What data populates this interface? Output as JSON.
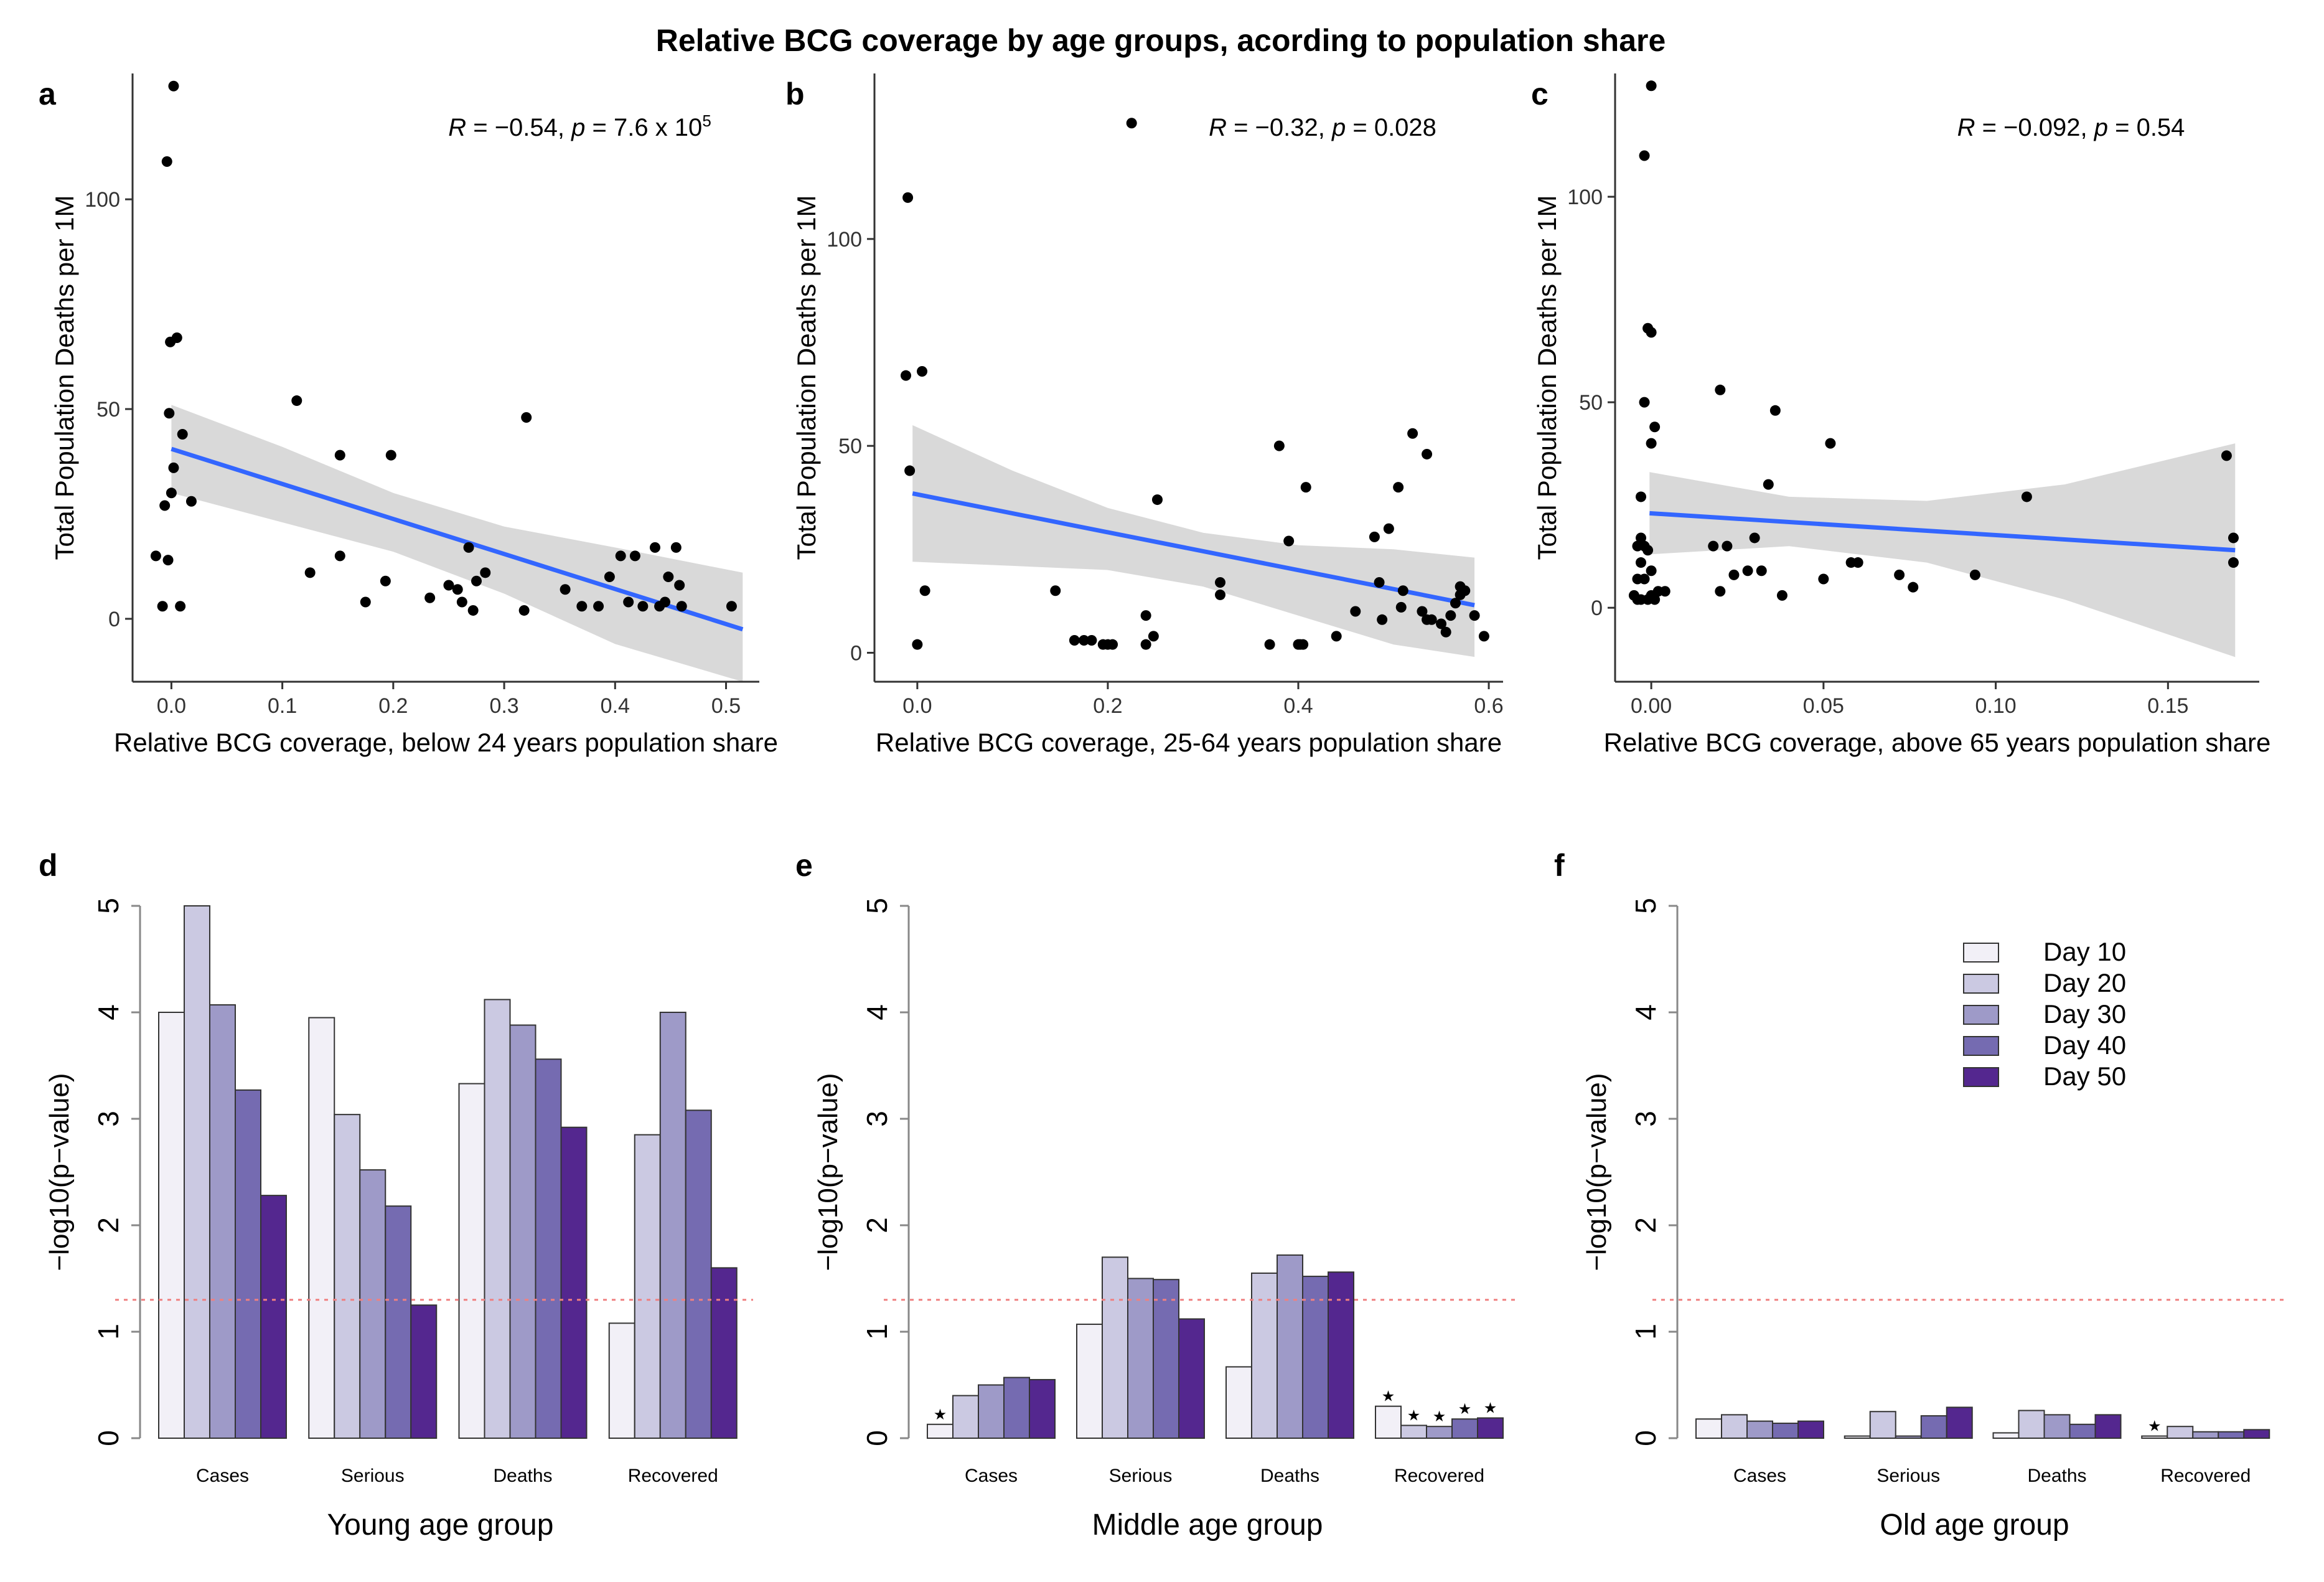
{
  "title": "Relative BCG coverage by age groups, acording to population share",
  "colors": {
    "point": "#000000",
    "fit_line": "#3366FF",
    "ribbon": "#D9D9D9",
    "threshold": "#F08080",
    "axis": "#333333",
    "days": [
      "#F2F0F7",
      "#CBC9E2",
      "#9E9AC8",
      "#756BB1",
      "#54278F"
    ]
  },
  "chart_data": [
    {
      "panel": "a",
      "type": "scatter",
      "xlabel": "Relative BCG coverage, below 24 years population share",
      "ylabel": "Total Population Deaths per 1M",
      "xlim": [
        -0.035,
        0.53
      ],
      "ylim": [
        -15,
        130
      ],
      "xticks": [
        0,
        0.1,
        0.2,
        0.3,
        0.4,
        0.5
      ],
      "xtick_labels": [
        "0.0",
        "0.1",
        "0.2",
        "0.3",
        "0.4",
        "0.5"
      ],
      "yticks": [
        0,
        50,
        100
      ],
      "ytick_labels": [
        "0",
        "50",
        "100"
      ],
      "annotation": {
        "r_lbl": "R",
        "r_val": " = −0.54, ",
        "p_lbl": "p",
        "p_val": " = 7.6 x 10",
        "p_sup": "5"
      },
      "fit": {
        "x0": 0.0,
        "y0": 40.5,
        "x1": 0.515,
        "y1": -2.5
      },
      "ribbon": {
        "x": [
          0.0,
          0.1,
          0.2,
          0.3,
          0.4,
          0.515
        ],
        "upper": [
          51,
          41,
          30,
          22,
          17,
          11
        ],
        "lower": [
          30,
          23,
          16,
          6,
          -6,
          -15
        ]
      },
      "points": [
        [
          0.002,
          127
        ],
        [
          -0.004,
          109
        ],
        [
          -0.001,
          66
        ],
        [
          0.005,
          67
        ],
        [
          -0.002,
          49
        ],
        [
          0.01,
          44
        ],
        [
          0.002,
          36
        ],
        [
          0.0,
          30
        ],
        [
          -0.006,
          27
        ],
        [
          0.018,
          28
        ],
        [
          -0.014,
          15
        ],
        [
          -0.003,
          14
        ],
        [
          -0.008,
          3
        ],
        [
          0.008,
          3
        ],
        [
          0.113,
          52
        ],
        [
          0.152,
          39
        ],
        [
          0.198,
          39
        ],
        [
          0.125,
          11
        ],
        [
          0.152,
          15
        ],
        [
          0.175,
          4
        ],
        [
          0.193,
          9
        ],
        [
          0.233,
          5
        ],
        [
          0.25,
          8
        ],
        [
          0.258,
          7
        ],
        [
          0.268,
          17
        ],
        [
          0.275,
          9
        ],
        [
          0.283,
          11
        ],
        [
          0.262,
          4
        ],
        [
          0.272,
          2
        ],
        [
          0.32,
          48
        ],
        [
          0.318,
          2
        ],
        [
          0.355,
          7
        ],
        [
          0.37,
          3
        ],
        [
          0.385,
          3
        ],
        [
          0.395,
          10
        ],
        [
          0.405,
          15
        ],
        [
          0.418,
          15
        ],
        [
          0.412,
          4
        ],
        [
          0.425,
          3
        ],
        [
          0.436,
          17
        ],
        [
          0.455,
          17
        ],
        [
          0.448,
          10
        ],
        [
          0.458,
          8
        ],
        [
          0.445,
          4
        ],
        [
          0.44,
          3
        ],
        [
          0.46,
          3
        ],
        [
          0.505,
          3
        ]
      ]
    },
    {
      "panel": "b",
      "type": "scatter",
      "xlabel": "Relative BCG coverage, 25-64 years population share",
      "ylabel": "Total Population Deaths per 1M",
      "xlim": [
        -0.045,
        0.615
      ],
      "ylim": [
        -7,
        140
      ],
      "xticks": [
        0,
        0.2,
        0.4,
        0.6
      ],
      "xtick_labels": [
        "0.0",
        "0.2",
        "0.4",
        "0.6"
      ],
      "yticks": [
        0,
        50,
        100
      ],
      "ytick_labels": [
        "0",
        "50",
        "100"
      ],
      "annotation": {
        "r_lbl": "R",
        "r_val": " = −0.32, ",
        "p_lbl": "p",
        "p_val": " = 0.028",
        "p_sup": ""
      },
      "fit": {
        "x0": -0.005,
        "y0": 38.5,
        "x1": 0.585,
        "y1": 11.5
      },
      "ribbon": {
        "x": [
          -0.005,
          0.1,
          0.2,
          0.3,
          0.4,
          0.5,
          0.585
        ],
        "upper": [
          55,
          44,
          35,
          29,
          26,
          25,
          23
        ],
        "lower": [
          22,
          21,
          20,
          16,
          9,
          2,
          -1
        ]
      },
      "points": [
        [
          -0.01,
          110
        ],
        [
          -0.012,
          67
        ],
        [
          -0.008,
          44
        ],
        [
          0.005,
          68
        ],
        [
          0.0,
          2
        ],
        [
          0.008,
          15
        ],
        [
          0.225,
          128
        ],
        [
          0.145,
          15
        ],
        [
          0.165,
          3
        ],
        [
          0.175,
          3
        ],
        [
          0.183,
          3
        ],
        [
          0.195,
          2
        ],
        [
          0.2,
          2
        ],
        [
          0.205,
          2
        ],
        [
          0.24,
          9
        ],
        [
          0.24,
          2
        ],
        [
          0.248,
          4
        ],
        [
          0.252,
          37
        ],
        [
          0.318,
          17
        ],
        [
          0.318,
          14
        ],
        [
          0.37,
          2
        ],
        [
          0.38,
          50
        ],
        [
          0.39,
          27
        ],
        [
          0.4,
          2
        ],
        [
          0.402,
          2
        ],
        [
          0.408,
          40
        ],
        [
          0.405,
          2
        ],
        [
          0.44,
          4
        ],
        [
          0.46,
          10
        ],
        [
          0.48,
          28
        ],
        [
          0.485,
          17
        ],
        [
          0.488,
          8
        ],
        [
          0.495,
          30
        ],
        [
          0.505,
          40
        ],
        [
          0.508,
          11
        ],
        [
          0.51,
          15
        ],
        [
          0.52,
          53
        ],
        [
          0.53,
          10
        ],
        [
          0.535,
          8
        ],
        [
          0.535,
          48
        ],
        [
          0.54,
          8
        ],
        [
          0.55,
          7
        ],
        [
          0.555,
          5
        ],
        [
          0.56,
          9
        ],
        [
          0.565,
          12
        ],
        [
          0.57,
          14
        ],
        [
          0.575,
          15
        ],
        [
          0.57,
          16
        ],
        [
          0.585,
          9
        ],
        [
          0.595,
          4
        ]
      ]
    },
    {
      "panel": "c",
      "type": "scatter",
      "xlabel": "Relative BCG coverage, above 65 years population share",
      "ylabel": "Total Population Deaths per 1M",
      "xlim": [
        -0.0105,
        0.1765
      ],
      "ylim": [
        -18,
        130
      ],
      "xticks": [
        0,
        0.05,
        0.1,
        0.15
      ],
      "xtick_labels": [
        "0.00",
        "0.05",
        "0.10",
        "0.15"
      ],
      "yticks": [
        0,
        50,
        100
      ],
      "ytick_labels": [
        "0",
        "50",
        "100"
      ],
      "annotation": {
        "r_lbl": "R",
        "r_val": " = −0.092, ",
        "p_lbl": "p",
        "p_val": " = 0.54",
        "p_sup": ""
      },
      "fit": {
        "x0": -0.0005,
        "y0": 23,
        "x1": 0.1695,
        "y1": 14
      },
      "ribbon": {
        "x": [
          -0.0005,
          0.04,
          0.08,
          0.12,
          0.1695
        ],
        "upper": [
          33,
          27,
          26,
          30,
          40
        ],
        "lower": [
          13,
          15,
          11,
          2,
          -12
        ]
      },
      "points": [
        [
          0.0,
          127
        ],
        [
          -0.002,
          110
        ],
        [
          -0.001,
          68
        ],
        [
          0.0,
          67
        ],
        [
          -0.002,
          50
        ],
        [
          0.001,
          44
        ],
        [
          0.0,
          40
        ],
        [
          -0.003,
          27
        ],
        [
          -0.003,
          17
        ],
        [
          -0.004,
          15
        ],
        [
          -0.002,
          15
        ],
        [
          -0.001,
          14
        ],
        [
          -0.003,
          11
        ],
        [
          0.0,
          9
        ],
        [
          -0.004,
          7
        ],
        [
          -0.002,
          7
        ],
        [
          0.002,
          4
        ],
        [
          -0.005,
          3
        ],
        [
          -0.004,
          2
        ],
        [
          -0.003,
          2
        ],
        [
          -0.001,
          2
        ],
        [
          0.0,
          3
        ],
        [
          0.001,
          2
        ],
        [
          0.004,
          4
        ],
        [
          0.02,
          53
        ],
        [
          0.018,
          15
        ],
        [
          0.022,
          15
        ],
        [
          0.024,
          8
        ],
        [
          0.02,
          4
        ],
        [
          0.028,
          9
        ],
        [
          0.032,
          9
        ],
        [
          0.03,
          17
        ],
        [
          0.034,
          30
        ],
        [
          0.036,
          48
        ],
        [
          0.038,
          3
        ],
        [
          0.05,
          7
        ],
        [
          0.052,
          40
        ],
        [
          0.058,
          11
        ],
        [
          0.06,
          11
        ],
        [
          0.072,
          8
        ],
        [
          0.076,
          5
        ],
        [
          0.094,
          8
        ],
        [
          0.109,
          27
        ],
        [
          0.167,
          37
        ],
        [
          0.169,
          17
        ],
        [
          0.169,
          11
        ]
      ]
    },
    {
      "panel": "d",
      "type": "bar",
      "xlabel": "Young age group",
      "ylabel": "−log10(p−value)",
      "categories": [
        "Cases",
        "Serious",
        "Deaths",
        "Recovered"
      ],
      "ylim": [
        0,
        5
      ],
      "yticks": [
        0,
        1,
        2,
        3,
        4,
        5
      ],
      "ytick_labels": [
        "0",
        "1",
        "2",
        "3",
        "4",
        "5"
      ],
      "threshold": 1.3,
      "series": [
        {
          "name": "Day 10",
          "values": [
            4.0,
            3.95,
            3.33,
            1.08
          ]
        },
        {
          "name": "Day 20",
          "values": [
            5.0,
            3.04,
            4.12,
            2.85
          ]
        },
        {
          "name": "Day 30",
          "values": [
            4.07,
            2.52,
            3.88,
            4.0
          ]
        },
        {
          "name": "Day 40",
          "values": [
            3.27,
            2.18,
            3.56,
            3.08
          ]
        },
        {
          "name": "Day 50",
          "values": [
            2.28,
            1.25,
            2.92,
            1.6
          ]
        }
      ],
      "stars": []
    },
    {
      "panel": "e",
      "type": "bar",
      "xlabel": "Middle age group",
      "ylabel": "−log10(p−value)",
      "categories": [
        "Cases",
        "Serious",
        "Deaths",
        "Recovered"
      ],
      "ylim": [
        0,
        5
      ],
      "yticks": [
        0,
        1,
        2,
        3,
        4,
        5
      ],
      "ytick_labels": [
        "0",
        "1",
        "2",
        "3",
        "4",
        "5"
      ],
      "threshold": 1.3,
      "series": [
        {
          "name": "Day 10",
          "values": [
            0.13,
            1.07,
            0.67,
            0.3
          ]
        },
        {
          "name": "Day 20",
          "values": [
            0.4,
            1.7,
            1.55,
            0.12
          ]
        },
        {
          "name": "Day 30",
          "values": [
            0.5,
            1.5,
            1.72,
            0.11
          ]
        },
        {
          "name": "Day 40",
          "values": [
            0.57,
            1.49,
            1.52,
            0.18
          ]
        },
        {
          "name": "Day 50",
          "values": [
            0.55,
            1.12,
            1.56,
            0.19
          ]
        }
      ],
      "stars": [
        [
          0,
          0
        ],
        [
          3,
          0
        ],
        [
          3,
          1
        ],
        [
          3,
          2
        ],
        [
          3,
          3
        ],
        [
          3,
          4
        ]
      ]
    },
    {
      "panel": "f",
      "type": "bar",
      "xlabel": "Old age group",
      "ylabel": "−log10(p−value)",
      "categories": [
        "Cases",
        "Serious",
        "Deaths",
        "Recovered"
      ],
      "ylim": [
        0,
        5
      ],
      "yticks": [
        0,
        1,
        2,
        3,
        4,
        5
      ],
      "ytick_labels": [
        "0",
        "1",
        "2",
        "3",
        "4",
        "5"
      ],
      "threshold": 1.3,
      "series": [
        {
          "name": "Day 10",
          "values": [
            0.18,
            0.02,
            0.05,
            0.02
          ]
        },
        {
          "name": "Day 20",
          "values": [
            0.22,
            0.25,
            0.26,
            0.11
          ]
        },
        {
          "name": "Day 30",
          "values": [
            0.16,
            0.02,
            0.22,
            0.06
          ]
        },
        {
          "name": "Day 40",
          "values": [
            0.14,
            0.21,
            0.13,
            0.06
          ]
        },
        {
          "name": "Day 50",
          "values": [
            0.16,
            0.29,
            0.22,
            0.08
          ]
        }
      ],
      "stars": [
        [
          3,
          0
        ]
      ],
      "legend": [
        "Day 10",
        "Day 20",
        "Day 30",
        "Day 40",
        "Day 50"
      ]
    }
  ]
}
